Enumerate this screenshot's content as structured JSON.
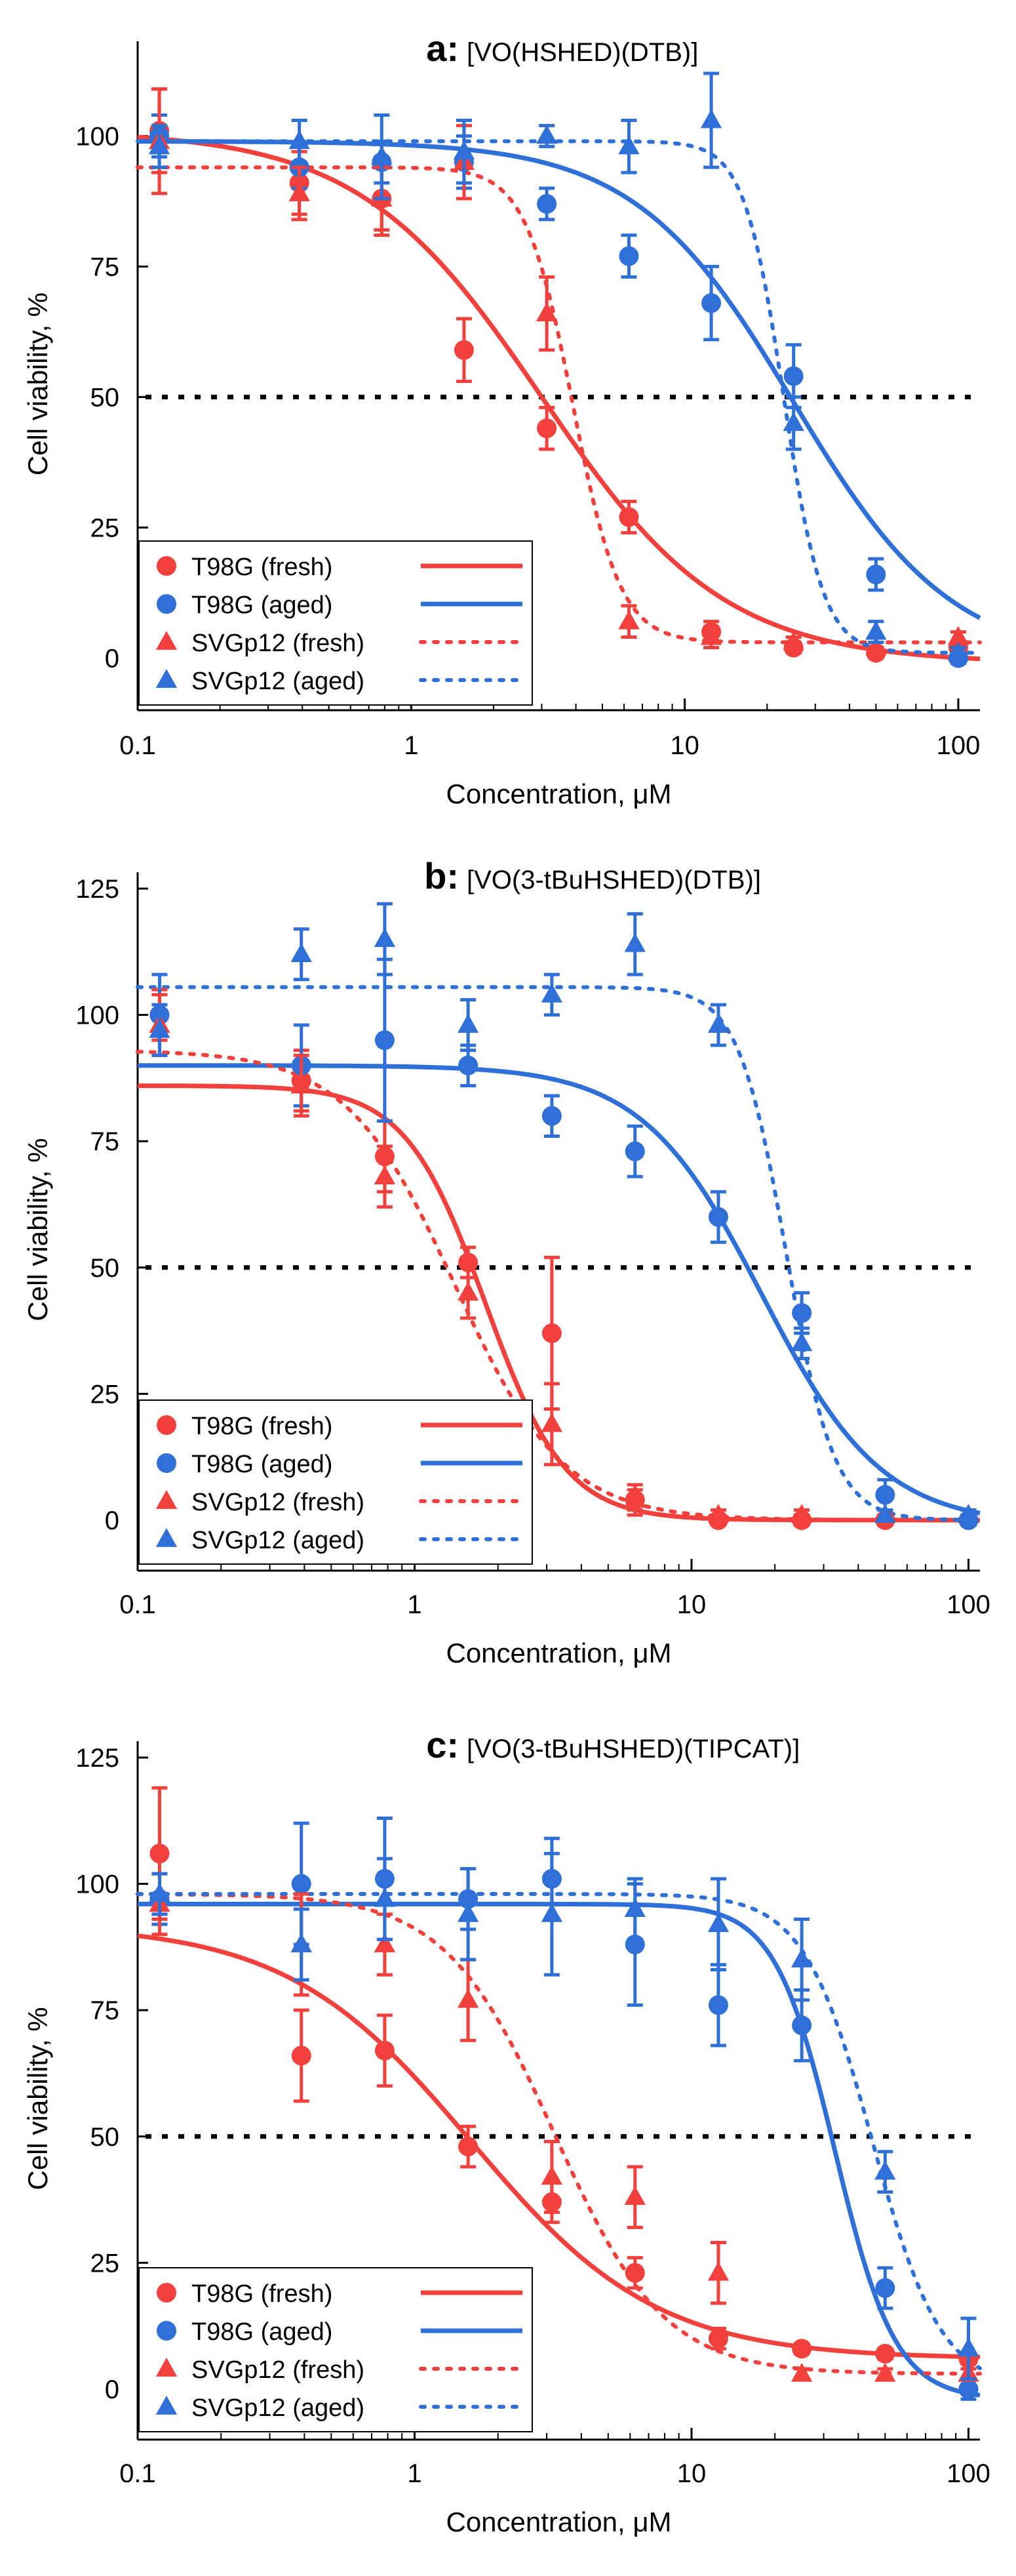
{
  "colors": {
    "fresh": "#f2403c",
    "aged": "#2f70d8",
    "axis": "#000000",
    "threshold": "#000000"
  },
  "chart_data": [
    {
      "type": "scatter",
      "panel_letter": "a:",
      "title": "[VO(HSHED)(DTB)]",
      "xlabel": "Concentration, μM",
      "ylabel": "Cell viability, %",
      "xscale": "log",
      "xlim": [
        0.1,
        120
      ],
      "ylim": [
        -10,
        115
      ],
      "xticks": [
        0.1,
        1,
        10,
        100
      ],
      "xtick_labels": [
        "0.1",
        "1",
        "10",
        "100"
      ],
      "yticks": [
        0,
        25,
        50,
        75,
        100
      ],
      "ytick_labels": [
        "0",
        "25",
        "50",
        "75",
        "100"
      ],
      "threshold": 50,
      "legend_position": "bottom-left",
      "series": [
        {
          "name": "T98G (fresh)",
          "marker": "circle",
          "color": "fresh",
          "line": "solid",
          "x": [
            0.12,
            0.39,
            0.78,
            1.56,
            3.13,
            6.25,
            12.5,
            25,
            50,
            100
          ],
          "y": [
            101,
            91,
            88,
            59,
            44,
            27,
            5,
            2,
            1,
            2
          ],
          "err": [
            8,
            6,
            7,
            6,
            4,
            3,
            2,
            1,
            1,
            1
          ],
          "fit": {
            "top": 101,
            "bottom": -1,
            "ic50": 3.0,
            "hill": 1.3
          }
        },
        {
          "name": "T98G (aged)",
          "marker": "circle",
          "color": "aged",
          "line": "solid",
          "x": [
            0.12,
            0.39,
            0.78,
            1.56,
            3.13,
            6.25,
            12.5,
            25,
            50,
            100
          ],
          "y": [
            100,
            94,
            95,
            95,
            87,
            77,
            68,
            54,
            16,
            0
          ],
          "err": [
            4,
            4,
            4,
            5,
            3,
            4,
            7,
            6,
            3,
            1
          ],
          "fit": {
            "top": 99,
            "bottom": -1,
            "ic50": 25,
            "hill": 1.5
          }
        },
        {
          "name": "SVGp12 (fresh)",
          "marker": "triangle",
          "color": "fresh",
          "line": "dotted",
          "x": [
            0.12,
            0.39,
            0.78,
            1.56,
            3.13,
            6.25,
            12.5,
            25,
            50,
            100
          ],
          "y": [
            99,
            89,
            88,
            95,
            66,
            7,
            4,
            3,
            2,
            4
          ],
          "err": [
            10,
            5,
            6,
            7,
            7,
            3,
            2,
            1,
            1,
            1
          ],
          "fit": {
            "top": 94,
            "bottom": 3,
            "ic50": 3.9,
            "hill": 5
          }
        },
        {
          "name": "SVGp12 (aged)",
          "marker": "triangle",
          "color": "aged",
          "line": "dotted",
          "x": [
            0.12,
            0.39,
            0.78,
            1.56,
            3.13,
            6.25,
            12.5,
            25,
            50,
            100
          ],
          "y": [
            98,
            99,
            96,
            97,
            100,
            98,
            103,
            45,
            5,
            1
          ],
          "err": [
            4,
            4,
            8,
            6,
            2,
            5,
            9,
            5,
            2,
            1
          ],
          "fit": {
            "top": 99,
            "bottom": 1,
            "ic50": 23,
            "hill": 6
          }
        }
      ]
    },
    {
      "type": "scatter",
      "panel_letter": "b:",
      "title": "[VO(3-tBuHSHED)(DTB)]",
      "xlabel": "Concentration, μM",
      "ylabel": "Cell viability, %",
      "xscale": "log",
      "xlim": [
        0.1,
        110
      ],
      "ylim": [
        -10,
        125
      ],
      "xticks": [
        0.1,
        1,
        10,
        100
      ],
      "xtick_labels": [
        "0.1",
        "1",
        "10",
        "100"
      ],
      "yticks": [
        0,
        25,
        50,
        75,
        100,
        125
      ],
      "ytick_labels": [
        "0",
        "25",
        "50",
        "75",
        "100",
        "125"
      ],
      "threshold": 50,
      "legend_position": "bottom-left",
      "series": [
        {
          "name": "T98G (fresh)",
          "marker": "circle",
          "color": "fresh",
          "line": "solid",
          "x": [
            0.12,
            0.39,
            0.78,
            1.56,
            3.13,
            6.25,
            12.5,
            25,
            50,
            100
          ],
          "y": [
            100,
            87,
            72,
            51,
            37,
            4,
            0,
            0,
            0,
            0
          ],
          "err": [
            5,
            6,
            7,
            3,
            15,
            3,
            1,
            1,
            1,
            1
          ],
          "fit": {
            "top": 86,
            "bottom": 0,
            "ic50": 1.8,
            "hill": 3
          }
        },
        {
          "name": "T98G (aged)",
          "marker": "circle",
          "color": "aged",
          "line": "solid",
          "x": [
            0.12,
            0.39,
            0.78,
            1.56,
            3.13,
            6.25,
            12.5,
            25,
            50,
            100
          ],
          "y": [
            100,
            90,
            95,
            90,
            80,
            73,
            60,
            41,
            5,
            0
          ],
          "err": [
            8,
            8,
            16,
            4,
            4,
            5,
            5,
            4,
            3,
            1
          ],
          "fit": {
            "top": 90,
            "bottom": -1,
            "ic50": 18,
            "hill": 2
          }
        },
        {
          "name": "SVGp12 (fresh)",
          "marker": "triangle",
          "color": "fresh",
          "line": "dotted",
          "x": [
            0.12,
            0.39,
            0.78,
            1.56,
            3.13,
            6.25,
            12.5,
            25,
            50,
            100
          ],
          "y": [
            98,
            86,
            68,
            45,
            19,
            4,
            1,
            1,
            1,
            1
          ],
          "err": [
            6,
            6,
            6,
            5,
            8,
            2,
            1,
            1,
            1,
            1
          ],
          "fit": {
            "top": 93,
            "bottom": 0,
            "ic50": 1.4,
            "hill": 2.2
          }
        },
        {
          "name": "SVGp12 (aged)",
          "marker": "triangle",
          "color": "aged",
          "line": "dotted",
          "x": [
            0.12,
            0.39,
            0.78,
            1.56,
            3.13,
            6.25,
            12.5,
            25,
            50,
            100
          ],
          "y": [
            97,
            112,
            115,
            98,
            104,
            114,
            98,
            35,
            1,
            1
          ],
          "err": [
            5,
            5,
            7,
            5,
            4,
            6,
            4,
            3,
            1,
            1
          ],
          "fit": {
            "top": 105.5,
            "bottom": 0,
            "ic50": 22,
            "hill": 5
          }
        }
      ]
    },
    {
      "type": "scatter",
      "panel_letter": "c:",
      "title": "[VO(3-tBuHSHED)(TIPCAT)]",
      "xlabel": "Concentration, μM",
      "ylabel": "Cell viability, %",
      "xscale": "log",
      "xlim": [
        0.1,
        110
      ],
      "ylim": [
        -10,
        125
      ],
      "xticks": [
        0.1,
        1,
        10,
        100
      ],
      "xtick_labels": [
        "0.1",
        "1",
        "10",
        "100"
      ],
      "yticks": [
        0,
        25,
        50,
        75,
        100,
        125
      ],
      "ytick_labels": [
        "0",
        "25",
        "50",
        "75",
        "100",
        "125"
      ],
      "threshold": 50,
      "legend_position": "bottom-left",
      "series": [
        {
          "name": "T98G (fresh)",
          "marker": "circle",
          "color": "fresh",
          "line": "solid",
          "x": [
            0.12,
            0.39,
            0.78,
            1.56,
            3.13,
            6.25,
            12.5,
            25,
            50,
            100
          ],
          "y": [
            106,
            66,
            67,
            48,
            37,
            23,
            10,
            8,
            7,
            6
          ],
          "err": [
            13,
            9,
            7,
            4,
            4,
            3,
            2,
            1,
            1,
            1
          ],
          "fit": {
            "top": 92,
            "bottom": 6,
            "ic50": 1.6,
            "hill": 1.3
          }
        },
        {
          "name": "T98G (aged)",
          "marker": "circle",
          "color": "aged",
          "line": "solid",
          "x": [
            0.12,
            0.39,
            0.78,
            1.56,
            3.13,
            6.25,
            12.5,
            25,
            50,
            100
          ],
          "y": [
            97,
            100,
            101,
            97,
            101,
            88,
            76,
            72,
            20,
            0
          ],
          "err": [
            5,
            12,
            12,
            6,
            8,
            12,
            8,
            7,
            4,
            2
          ],
          "fit": {
            "top": 96,
            "bottom": -2,
            "ic50": 33,
            "hill": 4
          }
        },
        {
          "name": "SVGp12 (fresh)",
          "marker": "triangle",
          "color": "fresh",
          "line": "dotted",
          "x": [
            0.12,
            0.39,
            0.78,
            1.56,
            3.13,
            6.25,
            12.5,
            25,
            50,
            100
          ],
          "y": [
            96,
            88,
            88,
            77,
            42,
            38,
            23,
            3,
            3,
            3
          ],
          "err": [
            6,
            10,
            6,
            8,
            7,
            6,
            6,
            1,
            1,
            1
          ],
          "fit": {
            "top": 98,
            "bottom": 3,
            "ic50": 3.2,
            "hill": 2.2
          }
        },
        {
          "name": "SVGp12 (aged)",
          "marker": "triangle",
          "color": "aged",
          "line": "dotted",
          "x": [
            0.12,
            0.39,
            0.78,
            1.56,
            3.13,
            6.25,
            12.5,
            25,
            50,
            100
          ],
          "y": [
            98,
            88,
            97,
            94,
            94,
            95,
            92,
            85,
            43,
            8
          ],
          "err": [
            4,
            7,
            8,
            9,
            12,
            6,
            9,
            8,
            4,
            6
          ],
          "fit": {
            "top": 98,
            "bottom": 0,
            "ic50": 45,
            "hill": 3.5
          }
        }
      ]
    }
  ]
}
